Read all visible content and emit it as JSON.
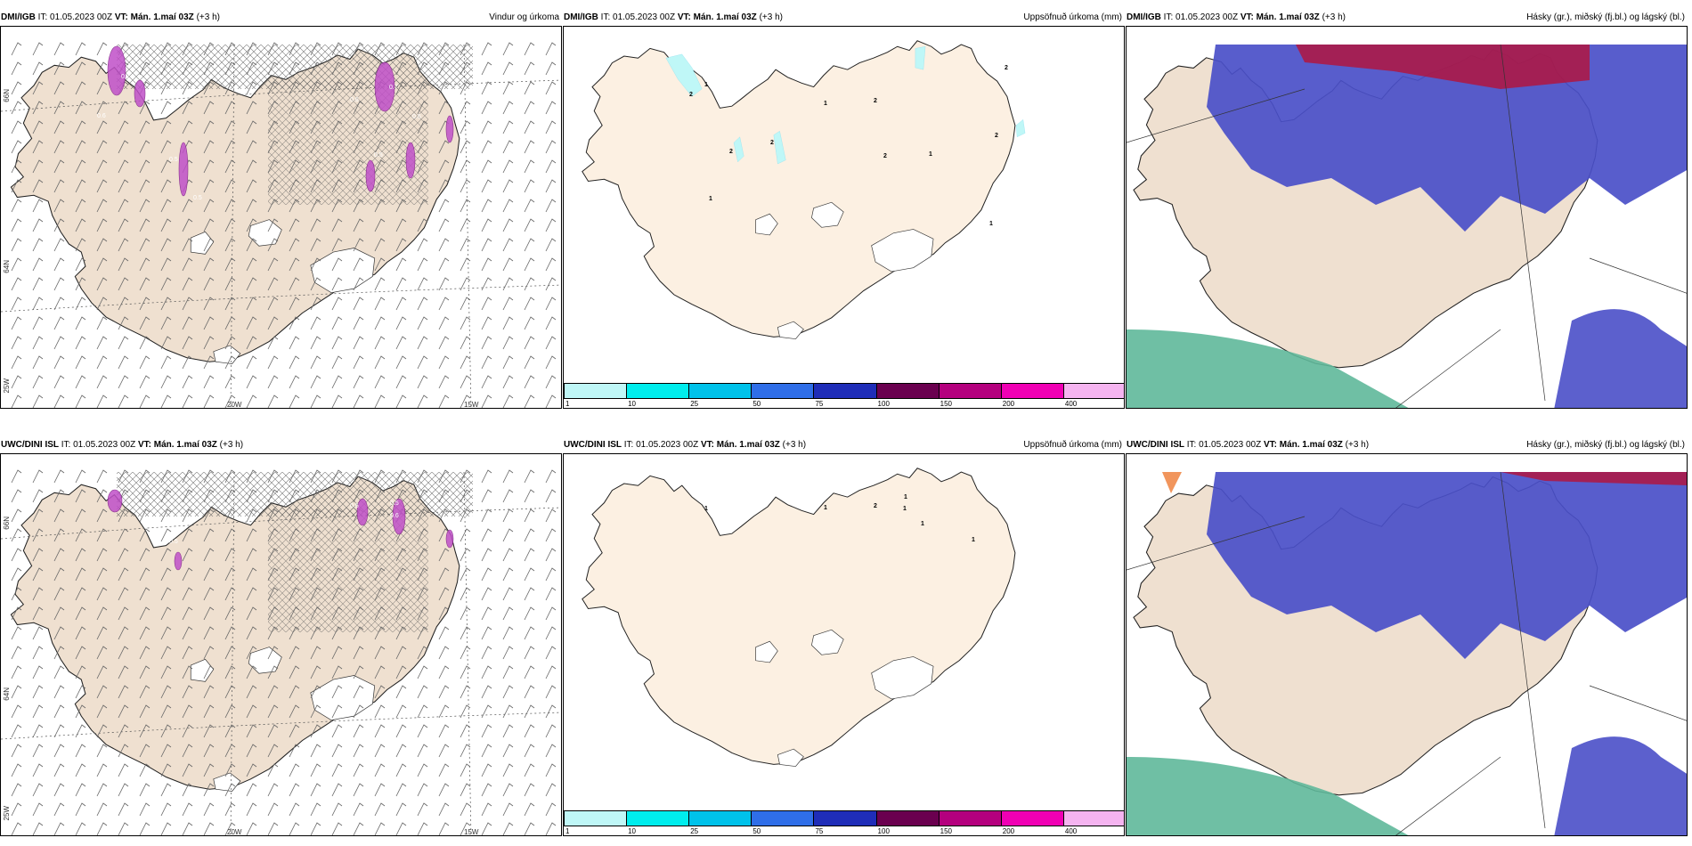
{
  "rows": [
    {
      "model": "DMI/IGB"
    },
    {
      "model": "UWC/DINI ISL"
    }
  ],
  "header": {
    "it": "IT: 01.05.2023 00Z",
    "vt": "VT: Mán. 1.maí 03Z",
    "lead": "(+3 h)"
  },
  "panel_titles": {
    "wind": "Vindur og úrkoma",
    "precip": "Uppsöfnuð úrkoma (mm)",
    "cloud": "Hásky (gr.), miðský (fj.bl.) og lágský (bl.)"
  },
  "grid_labels": {
    "lat66": "66N",
    "lat64": "64N",
    "lon25": "25W",
    "lon20": "20W",
    "lon15": "15W"
  },
  "colorbar": {
    "ticks": [
      "1",
      "10",
      "25",
      "50",
      "75",
      "100",
      "150",
      "200",
      "400"
    ],
    "colors": [
      "#bff7f7",
      "#00eded",
      "#00c2ea",
      "#2f6ee8",
      "#1f2db8",
      "#6a004f",
      "#b4007e",
      "#f000b4",
      "#f5b4f0"
    ]
  },
  "precip_values_top": [
    {
      "v": "1",
      "x": 158,
      "y": 67
    },
    {
      "v": "2",
      "x": 141,
      "y": 78
    },
    {
      "v": "2",
      "x": 232,
      "y": 132
    },
    {
      "v": "2",
      "x": 186,
      "y": 142
    },
    {
      "v": "2",
      "x": 348,
      "y": 85
    },
    {
      "v": "1",
      "x": 292,
      "y": 88
    },
    {
      "v": "2",
      "x": 359,
      "y": 147
    },
    {
      "v": "1",
      "x": 410,
      "y": 145
    },
    {
      "v": "2",
      "x": 484,
      "y": 124
    },
    {
      "v": "2",
      "x": 495,
      "y": 48
    },
    {
      "v": "1",
      "x": 163,
      "y": 195
    },
    {
      "v": "1",
      "x": 478,
      "y": 223
    }
  ],
  "precip_values_bottom": [
    {
      "v": "1",
      "x": 158,
      "y": 63
    },
    {
      "v": "2",
      "x": 348,
      "y": 60
    },
    {
      "v": "1",
      "x": 292,
      "y": 62
    },
    {
      "v": "1",
      "x": 382,
      "y": 50
    },
    {
      "v": "1",
      "x": 381,
      "y": 63
    },
    {
      "v": "1",
      "x": 401,
      "y": 80
    },
    {
      "v": "1",
      "x": 458,
      "y": 98
    }
  ],
  "wind_precip_labels_top": [
    {
      "v": "0.7",
      "x": 135,
      "y": 58
    },
    {
      "v": "0.6",
      "x": 108,
      "y": 102
    },
    {
      "v": "0.5",
      "x": 189,
      "y": 151
    },
    {
      "v": "0.5",
      "x": 216,
      "y": 194
    },
    {
      "v": "0.6",
      "x": 392,
      "y": 84
    },
    {
      "v": "0.7",
      "x": 436,
      "y": 70
    },
    {
      "v": "0.6",
      "x": 462,
      "y": 103
    },
    {
      "v": "0.5",
      "x": 419,
      "y": 146
    }
  ],
  "wind_precip_labels_bottom": [
    {
      "v": "0.6",
      "x": 392,
      "y": 60
    },
    {
      "v": "0.5",
      "x": 437,
      "y": 57
    },
    {
      "v": "0.6",
      "x": 437,
      "y": 71
    },
    {
      "v": "0.5",
      "x": 189,
      "y": 100
    }
  ]
}
